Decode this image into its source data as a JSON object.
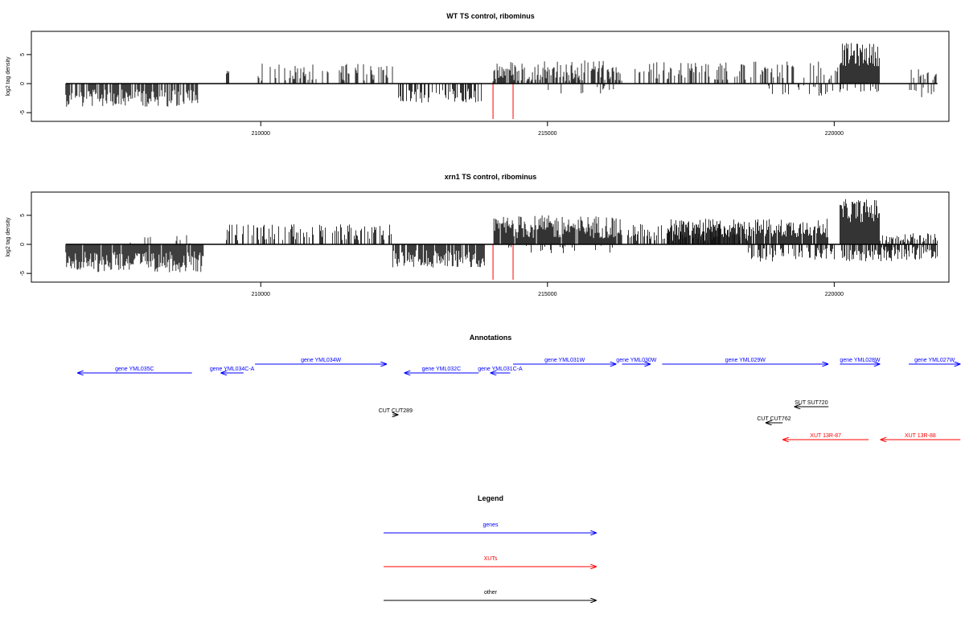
{
  "colors": {
    "gene": "#0000ff",
    "xut": "#ff0000",
    "other": "#000000",
    "signal": "#000000",
    "marker": "#ff0000"
  },
  "chart_data": [
    {
      "type": "bar",
      "title": "WT TS control, ribominus",
      "ylabel": "log2 tag density",
      "xlim": [
        206000,
        222000
      ],
      "ylim": [
        -6.5,
        9.0
      ],
      "xticks": [
        210000,
        215000,
        220000
      ],
      "yticks": [
        -5,
        0,
        5
      ],
      "markers": [
        214050,
        214400
      ],
      "segments": [
        {
          "range": [
            206600,
            208900
          ],
          "sign": -1,
          "level": 2.5,
          "spread": 1.5,
          "density": 0.75
        },
        {
          "range": [
            209400,
            209450
          ],
          "sign": 1,
          "level": 2.0,
          "spread": 0.3,
          "density": 1.0
        },
        {
          "range": [
            209800,
            212300
          ],
          "sign": 1,
          "level": 2.0,
          "spread": 1.5,
          "density": 0.35
        },
        {
          "range": [
            212400,
            213900
          ],
          "sign": -1,
          "level": 2.0,
          "spread": 1.3,
          "density": 0.55
        },
        {
          "range": [
            214050,
            216300
          ],
          "sign": 1,
          "level": 2.2,
          "spread": 1.8,
          "density": 0.7
        },
        {
          "range": [
            215000,
            216500
          ],
          "sign": -1,
          "level": 1.0,
          "spread": 0.8,
          "density": 0.1
        },
        {
          "range": [
            216500,
            220100
          ],
          "sign": 1,
          "level": 2.2,
          "spread": 1.6,
          "density": 0.35
        },
        {
          "range": [
            218500,
            220000
          ],
          "sign": -1,
          "level": 1.3,
          "spread": 1.0,
          "density": 0.2
        },
        {
          "range": [
            220100,
            220800
          ],
          "sign": 1,
          "level": 5.0,
          "spread": 2.0,
          "density": 1.0
        },
        {
          "range": [
            220100,
            220800
          ],
          "sign": -1,
          "level": 1.0,
          "spread": 0.6,
          "density": 0.2
        },
        {
          "range": [
            221300,
            221800
          ],
          "sign": 1,
          "level": 1.5,
          "spread": 1.0,
          "density": 0.3
        },
        {
          "range": [
            221300,
            221800
          ],
          "sign": -1,
          "level": 1.5,
          "spread": 1.0,
          "density": 0.3
        }
      ]
    },
    {
      "type": "bar",
      "title": "xrn1 TS control, ribominus",
      "ylabel": "log2 tag density",
      "xlim": [
        206000,
        222000
      ],
      "ylim": [
        -6.5,
        9.0
      ],
      "xticks": [
        210000,
        215000,
        220000
      ],
      "yticks": [
        -5,
        0,
        5
      ],
      "markers": [
        214050,
        214400
      ],
      "segments": [
        {
          "range": [
            206600,
            209000
          ],
          "sign": -1,
          "level": 3.0,
          "spread": 1.8,
          "density": 0.95
        },
        {
          "range": [
            207500,
            208800
          ],
          "sign": 1,
          "level": 0.8,
          "spread": 0.8,
          "density": 0.08
        },
        {
          "range": [
            209400,
            212300
          ],
          "sign": 1,
          "level": 2.0,
          "spread": 1.5,
          "density": 0.45
        },
        {
          "range": [
            212300,
            213900
          ],
          "sign": -1,
          "level": 2.5,
          "spread": 1.5,
          "density": 0.9
        },
        {
          "range": [
            214050,
            216300
          ],
          "sign": 1,
          "level": 3.0,
          "spread": 2.0,
          "density": 0.95
        },
        {
          "range": [
            214100,
            216300
          ],
          "sign": -1,
          "level": 0.8,
          "spread": 0.8,
          "density": 0.15
        },
        {
          "range": [
            216400,
            218500
          ],
          "sign": 1,
          "level": 2.0,
          "spread": 1.5,
          "density": 0.6
        },
        {
          "range": [
            217100,
            219900
          ],
          "sign": 1,
          "level": 2.8,
          "spread": 1.6,
          "density": 0.9
        },
        {
          "range": [
            218500,
            221000
          ],
          "sign": -1,
          "level": 1.8,
          "spread": 1.2,
          "density": 0.6
        },
        {
          "range": [
            220100,
            220800
          ],
          "sign": 1,
          "level": 5.8,
          "spread": 2.0,
          "density": 1.0
        },
        {
          "range": [
            220800,
            221800
          ],
          "sign": 1,
          "level": 1.2,
          "spread": 0.8,
          "density": 0.5
        },
        {
          "range": [
            220800,
            221800
          ],
          "sign": -1,
          "level": 1.5,
          "spread": 1.2,
          "density": 0.6
        }
      ]
    }
  ],
  "annotations": {
    "title": "Annotations",
    "features": [
      {
        "label": "gene YML035C",
        "start": 208800,
        "end": 206800,
        "row": 1,
        "kind": "gene"
      },
      {
        "label": "gene YML034C-A",
        "start": 209700,
        "end": 209300,
        "row": 1,
        "kind": "gene"
      },
      {
        "label": "gene YML034W",
        "start": 209900,
        "end": 212200,
        "row": 0,
        "kind": "gene"
      },
      {
        "label": "gene YML032C",
        "start": 213800,
        "end": 212500,
        "row": 1,
        "kind": "gene"
      },
      {
        "label": "gene YML031C-A",
        "start": 214350,
        "end": 214000,
        "row": 1,
        "kind": "gene"
      },
      {
        "label": "gene YML031W",
        "start": 214400,
        "end": 216200,
        "row": 0,
        "kind": "gene"
      },
      {
        "label": "gene YML030W",
        "start": 216300,
        "end": 216800,
        "row": 0,
        "kind": "gene"
      },
      {
        "label": "gene YML029W",
        "start": 217000,
        "end": 219900,
        "row": 0,
        "kind": "gene"
      },
      {
        "label": "gene YML028W",
        "start": 220100,
        "end": 220800,
        "row": 0,
        "kind": "gene"
      },
      {
        "label": "gene YML027W",
        "start": 221300,
        "end": 222200,
        "row": 0,
        "kind": "gene"
      },
      {
        "label": "CUT CUT289",
        "start": 212300,
        "end": 212400,
        "row": 4,
        "kind": "other"
      },
      {
        "label": "SUT SUT720",
        "start": 219900,
        "end": 219300,
        "row": 3,
        "kind": "other"
      },
      {
        "label": "CUT CUT762",
        "start": 219100,
        "end": 218800,
        "row": 5,
        "kind": "other"
      },
      {
        "label": "XUT 13R-87",
        "start": 220600,
        "end": 219100,
        "row": 6,
        "kind": "xut"
      },
      {
        "label": "XUT 13R-88",
        "start": 222200,
        "end": 220800,
        "row": 6,
        "kind": "xut"
      }
    ]
  },
  "legend": {
    "title": "Legend",
    "items": [
      {
        "label": "genes",
        "kind": "gene"
      },
      {
        "label": "XUTs",
        "kind": "xut"
      },
      {
        "label": "other",
        "kind": "other"
      }
    ]
  }
}
